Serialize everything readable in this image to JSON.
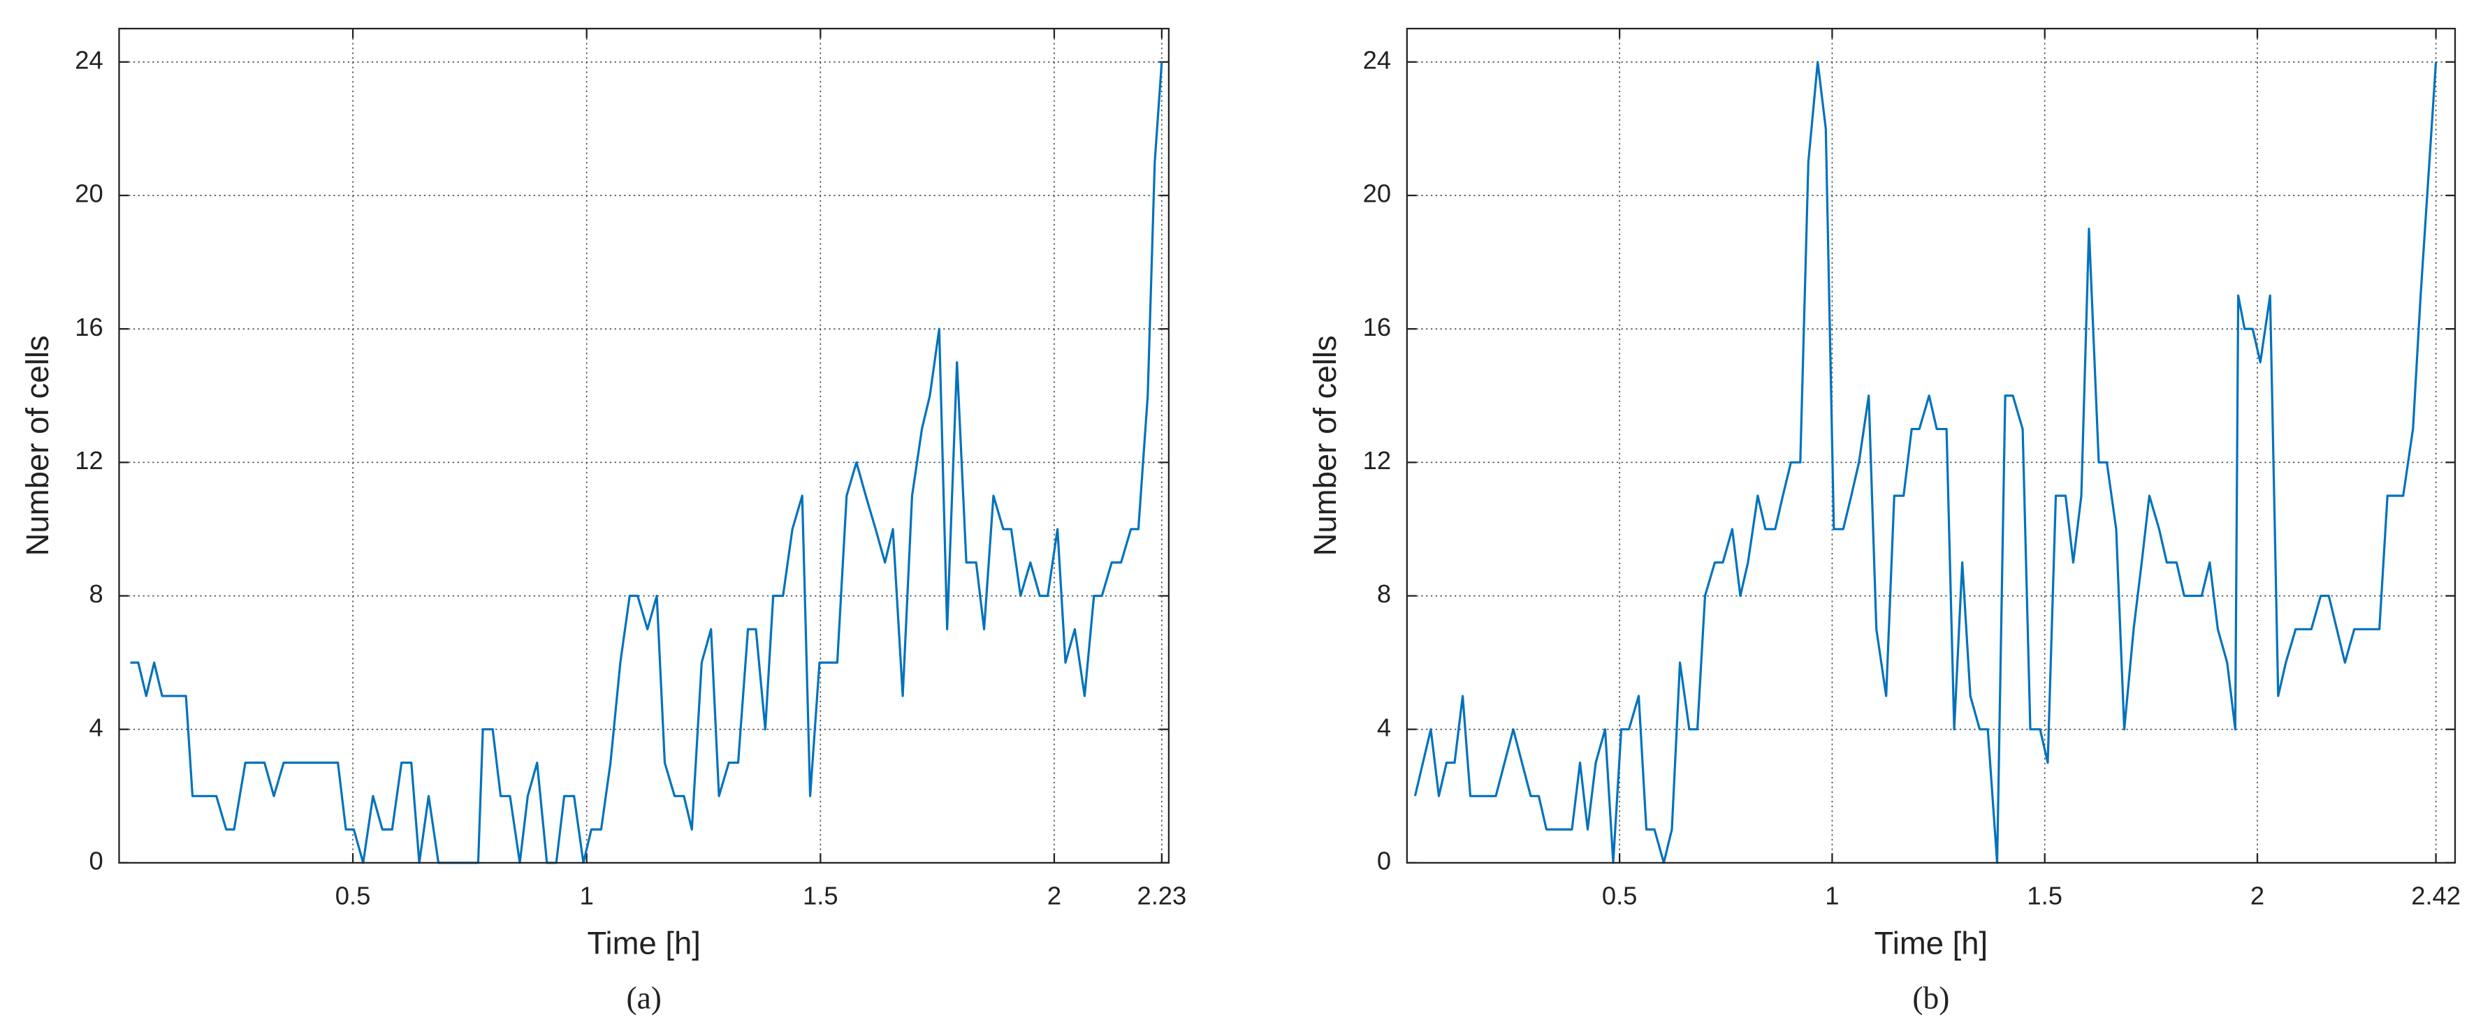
{
  "chart_data": [
    {
      "type": "line",
      "caption": "(a)",
      "xlabel": "Time [h]",
      "ylabel": "Number of cells",
      "xlim": [
        0,
        2.245
      ],
      "ylim": [
        0,
        25
      ],
      "xticks": [
        0.5,
        1,
        1.5,
        2,
        2.23
      ],
      "yticks": [
        0,
        4,
        8,
        12,
        16,
        20,
        24
      ],
      "grid": true,
      "series": [
        {
          "color": "#0072bd",
          "x": [
            0.024,
            0.041,
            0.058,
            0.075,
            0.092,
            0.126,
            0.143,
            0.157,
            0.208,
            0.229,
            0.246,
            0.27,
            0.311,
            0.331,
            0.352,
            0.468,
            0.485,
            0.502,
            0.522,
            0.543,
            0.563,
            0.584,
            0.604,
            0.625,
            0.642,
            0.662,
            0.683,
            0.768,
            0.778,
            0.799,
            0.816,
            0.836,
            0.857,
            0.874,
            0.894,
            0.915,
            0.935,
            0.952,
            0.973,
            0.993,
            1.01,
            1.031,
            1.051,
            1.072,
            1.092,
            1.109,
            1.13,
            1.15,
            1.167,
            1.188,
            1.208,
            1.225,
            1.246,
            1.266,
            1.283,
            1.304,
            1.324,
            1.345,
            1.362,
            1.382,
            1.399,
            1.42,
            1.44,
            1.461,
            1.478,
            1.498,
            1.536,
            1.556,
            1.577,
            1.597,
            1.618,
            1.638,
            1.655,
            1.676,
            1.696,
            1.717,
            1.734,
            1.754,
            1.771,
            1.792,
            1.812,
            1.833,
            1.85,
            1.87,
            1.891,
            1.908,
            1.928,
            1.949,
            1.969,
            1.986,
            2.007,
            2.024,
            2.044,
            2.065,
            2.085,
            2.102,
            2.123,
            2.143,
            2.164,
            2.18,
            2.2,
            2.215,
            2.23
          ],
          "values": [
            6,
            6,
            5,
            6,
            5,
            5,
            5,
            2,
            2,
            1,
            1,
            3,
            3,
            2,
            3,
            3,
            1,
            1,
            0,
            2,
            1,
            1,
            3,
            3,
            0,
            2,
            0,
            0,
            4,
            4,
            2,
            2,
            0,
            2,
            3,
            0,
            0,
            2,
            2,
            0,
            1,
            1,
            3,
            6,
            8,
            8,
            7,
            8,
            3,
            2,
            2,
            1,
            6,
            7,
            2,
            3,
            3,
            7,
            7,
            4,
            8,
            8,
            10,
            11,
            2,
            6,
            6,
            11,
            12,
            11,
            10,
            9,
            10,
            5,
            11,
            13,
            14,
            16,
            7,
            15,
            9,
            9,
            7,
            11,
            10,
            10,
            8,
            9,
            8,
            8,
            10,
            6,
            7,
            5,
            8,
            8,
            9,
            9,
            10,
            10,
            14,
            21,
            24
          ]
        }
      ]
    },
    {
      "type": "line",
      "caption": "(b)",
      "xlabel": "Time [h]",
      "ylabel": "Number of cells",
      "xlim": [
        0,
        2.465
      ],
      "ylim": [
        0,
        25
      ],
      "xticks": [
        0.5,
        1,
        1.5,
        2,
        2.42
      ],
      "yticks": [
        0,
        4,
        8,
        12,
        16,
        20,
        24
      ],
      "grid": true,
      "series": [
        {
          "color": "#0072bd",
          "x": [
            0.019,
            0.056,
            0.075,
            0.093,
            0.112,
            0.131,
            0.149,
            0.209,
            0.25,
            0.291,
            0.31,
            0.328,
            0.388,
            0.407,
            0.425,
            0.444,
            0.466,
            0.485,
            0.504,
            0.522,
            0.545,
            0.563,
            0.582,
            0.604,
            0.623,
            0.642,
            0.664,
            0.683,
            0.701,
            0.724,
            0.743,
            0.765,
            0.784,
            0.802,
            0.825,
            0.843,
            0.866,
            0.884,
            0.903,
            0.925,
            0.944,
            0.966,
            0.985,
            1.004,
            1.026,
            1.045,
            1.063,
            1.086,
            1.104,
            1.127,
            1.146,
            1.168,
            1.187,
            1.205,
            1.228,
            1.246,
            1.269,
            1.287,
            1.306,
            1.325,
            1.347,
            1.366,
            1.388,
            1.407,
            1.425,
            1.448,
            1.466,
            1.489,
            1.507,
            1.526,
            1.549,
            1.567,
            1.586,
            1.604,
            1.627,
            1.646,
            1.668,
            1.687,
            1.709,
            1.728,
            1.746,
            1.769,
            1.787,
            1.81,
            1.828,
            1.847,
            1.869,
            1.888,
            1.907,
            1.929,
            1.948,
            1.955,
            1.97,
            1.989,
            2.007,
            2.03,
            2.049,
            2.067,
            2.09,
            2.127,
            2.149,
            2.168,
            2.187,
            2.206,
            2.228,
            2.287,
            2.306,
            2.343,
            2.366,
            2.384,
            2.42
          ],
          "values": [
            2,
            4,
            2,
            3,
            3,
            5,
            2,
            2,
            4,
            2,
            2,
            1,
            1,
            3,
            1,
            3,
            4,
            0,
            4,
            4,
            5,
            1,
            1,
            0,
            1,
            6,
            4,
            4,
            8,
            9,
            9,
            10,
            8,
            9,
            11,
            10,
            10,
            11,
            12,
            12,
            21,
            24,
            22,
            10,
            10,
            11,
            12,
            14,
            7,
            5,
            11,
            11,
            13,
            13,
            14,
            13,
            13,
            4,
            9,
            5,
            4,
            4,
            0,
            14,
            14,
            13,
            4,
            4,
            3,
            11,
            11,
            9,
            11,
            19,
            12,
            12,
            10,
            4,
            7,
            9,
            11,
            10,
            9,
            9,
            8,
            8,
            8,
            9,
            7,
            6,
            4,
            17,
            16,
            16,
            15,
            17,
            5,
            6,
            7,
            7,
            8,
            8,
            7,
            6,
            7,
            7,
            11,
            11,
            13,
            17,
            24
          ]
        }
      ]
    }
  ]
}
